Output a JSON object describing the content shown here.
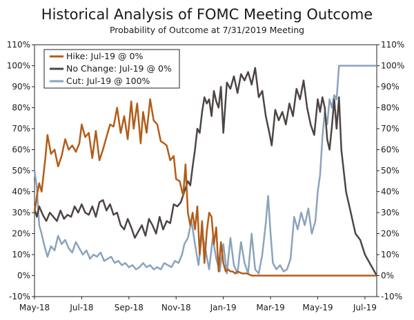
{
  "chart_data": {
    "type": "line",
    "title": "Historical Analysis of FOMC Meeting Outcome",
    "subtitle": "Probability of Outcome at 7/31/2019 Meeting",
    "y_tick_labels": [
      "-10%",
      "0%",
      "10%",
      "20%",
      "30%",
      "40%",
      "50%",
      "60%",
      "70%",
      "80%",
      "90%",
      "100%",
      "110%"
    ],
    "y_tick_values": [
      -10,
      0,
      10,
      20,
      30,
      40,
      50,
      60,
      70,
      80,
      90,
      100,
      110
    ],
    "ylim": [
      -10,
      110
    ],
    "xlim": [
      0,
      14.5
    ],
    "x_tick_labels": [
      "May-18",
      "Jul-18",
      "Sep-18",
      "Nov-18",
      "Jan-19",
      "Mar-19",
      "May-19",
      "Jul-19"
    ],
    "x_tick_values": [
      0,
      2,
      4,
      6,
      8,
      10,
      12,
      14
    ],
    "legend": {
      "position": "top-left"
    },
    "series": [
      {
        "name": "Hike: Jul-19 @ 0%",
        "color": "#b35c17",
        "x": [
          0,
          0.1,
          0.2,
          0.3,
          0.45,
          0.55,
          0.7,
          0.85,
          1.0,
          1.15,
          1.3,
          1.45,
          1.6,
          1.75,
          1.9,
          2.0,
          2.15,
          2.3,
          2.45,
          2.6,
          2.75,
          2.9,
          3.05,
          3.2,
          3.35,
          3.5,
          3.65,
          3.8,
          3.95,
          4.1,
          4.2,
          4.35,
          4.5,
          4.6,
          4.75,
          4.9,
          5.05,
          5.2,
          5.35,
          5.5,
          5.6,
          5.75,
          5.9,
          6.0,
          6.15,
          6.3,
          6.4,
          6.5,
          6.6,
          6.7,
          6.8,
          6.9,
          7.0,
          7.1,
          7.2,
          7.3,
          7.4,
          7.5,
          7.6,
          7.7,
          7.8,
          7.9,
          8.0,
          8.1,
          8.2,
          8.3,
          8.4,
          8.5,
          8.6,
          8.8,
          9.0,
          9.2,
          9.4,
          9.6,
          9.8,
          10.0,
          10.5,
          11.0,
          11.5,
          12.0,
          12.5,
          13.0,
          13.5,
          14.0,
          14.5
        ],
        "values": [
          30,
          38,
          44,
          40,
          55,
          67,
          58,
          60,
          52,
          57,
          65,
          60,
          62,
          59,
          63,
          72,
          66,
          68,
          56,
          69,
          55,
          60,
          66,
          72,
          71,
          80,
          68,
          76,
          65,
          83,
          70,
          82,
          63,
          78,
          68,
          84,
          74,
          72,
          64,
          63,
          62,
          55,
          57,
          46,
          45,
          38,
          53,
          30,
          24,
          30,
          22,
          33,
          10,
          26,
          6,
          21,
          30,
          28,
          15,
          23,
          2,
          16,
          6,
          2,
          3,
          2,
          2,
          1,
          2,
          1,
          1,
          0,
          0,
          0,
          0,
          0,
          0,
          0,
          0,
          0,
          0,
          0,
          0,
          0,
          0
        ]
      },
      {
        "name": "No Change: Jul-19 @ 0%",
        "color": "#4d4444",
        "x": [
          0,
          0.1,
          0.2,
          0.35,
          0.5,
          0.65,
          0.8,
          0.95,
          1.1,
          1.25,
          1.4,
          1.55,
          1.7,
          1.85,
          2.0,
          2.15,
          2.3,
          2.45,
          2.6,
          2.75,
          2.9,
          3.05,
          3.2,
          3.35,
          3.5,
          3.65,
          3.8,
          3.95,
          4.1,
          4.25,
          4.4,
          4.55,
          4.7,
          4.85,
          5.0,
          5.15,
          5.3,
          5.45,
          5.6,
          5.75,
          5.9,
          6.05,
          6.2,
          6.35,
          6.5,
          6.6,
          6.7,
          6.8,
          6.9,
          7.0,
          7.1,
          7.2,
          7.3,
          7.4,
          7.5,
          7.6,
          7.7,
          7.8,
          7.9,
          8.0,
          8.15,
          8.3,
          8.45,
          8.6,
          8.75,
          8.9,
          9.05,
          9.2,
          9.35,
          9.5,
          9.65,
          9.8,
          9.95,
          10.05,
          10.2,
          10.35,
          10.5,
          10.65,
          10.8,
          10.95,
          11.1,
          11.25,
          11.4,
          11.55,
          11.7,
          11.85,
          12.0,
          12.1,
          12.2,
          12.3,
          12.4,
          12.5,
          12.6,
          12.7,
          12.8,
          12.9,
          13.0,
          13.2,
          13.4,
          13.6,
          13.8,
          14.0,
          14.5
        ],
        "values": [
          32,
          28,
          33,
          29,
          26,
          30,
          28,
          26,
          31,
          27,
          29,
          28,
          33,
          30,
          34,
          30,
          29,
          33,
          28,
          35,
          36,
          31,
          34,
          29,
          30,
          24,
          22,
          27,
          23,
          18,
          21,
          24,
          19,
          27,
          24,
          20,
          28,
          22,
          26,
          25,
          34,
          33,
          35,
          40,
          45,
          43,
          52,
          60,
          70,
          68,
          78,
          85,
          82,
          84,
          76,
          88,
          83,
          80,
          90,
          68,
          92,
          89,
          95,
          87,
          96,
          93,
          97,
          91,
          99,
          85,
          88,
          76,
          68,
          62,
          79,
          74,
          78,
          72,
          82,
          76,
          89,
          84,
          93,
          80,
          72,
          67,
          84,
          78,
          85,
          80,
          65,
          60,
          71,
          84,
          70,
          85,
          60,
          40,
          30,
          20,
          17,
          10,
          0
        ]
      },
      {
        "name": "Cut: Jul-19 @ 100%",
        "color": "#8aa3bd",
        "x": [
          0,
          0.1,
          0.2,
          0.3,
          0.4,
          0.55,
          0.7,
          0.85,
          1.0,
          1.15,
          1.3,
          1.45,
          1.6,
          1.75,
          1.9,
          2.05,
          2.2,
          2.35,
          2.5,
          2.65,
          2.8,
          2.95,
          3.1,
          3.25,
          3.4,
          3.55,
          3.7,
          3.85,
          4.0,
          4.15,
          4.3,
          4.45,
          4.6,
          4.75,
          4.9,
          5.05,
          5.2,
          5.35,
          5.5,
          5.65,
          5.8,
          5.95,
          6.1,
          6.25,
          6.35,
          6.5,
          6.65,
          6.8,
          6.95,
          7.1,
          7.25,
          7.4,
          7.55,
          7.7,
          7.85,
          8.0,
          8.15,
          8.3,
          8.45,
          8.6,
          8.75,
          8.9,
          9.05,
          9.2,
          9.35,
          9.5,
          9.65,
          9.8,
          9.9,
          10.0,
          10.1,
          10.25,
          10.4,
          10.55,
          10.7,
          10.85,
          11.0,
          11.15,
          11.3,
          11.45,
          11.6,
          11.75,
          11.9,
          12.0,
          12.1,
          12.2,
          12.3,
          12.4,
          12.5,
          12.6,
          12.7,
          12.8,
          12.9,
          13.0,
          13.1,
          13.2,
          13.3,
          13.4,
          13.5,
          13.6,
          13.8,
          14.0,
          14.5
        ],
        "values": [
          50,
          42,
          24,
          20,
          15,
          9,
          14,
          12,
          19,
          15,
          17,
          13,
          11,
          16,
          13,
          10,
          12,
          8,
          10,
          9,
          11,
          7,
          8,
          9,
          6,
          7,
          5,
          6,
          4,
          5,
          3,
          4,
          6,
          4,
          5,
          3,
          4,
          3,
          6,
          5,
          4,
          7,
          6,
          10,
          15,
          18,
          26,
          15,
          5,
          20,
          12,
          3,
          18,
          8,
          2,
          15,
          1,
          18,
          5,
          1,
          16,
          6,
          1,
          20,
          3,
          1,
          10,
          25,
          38,
          20,
          6,
          3,
          5,
          2,
          3,
          8,
          28,
          22,
          30,
          24,
          32,
          20,
          26,
          40,
          48,
          66,
          78,
          72,
          84,
          80,
          86,
          84,
          100,
          100,
          100,
          100,
          100,
          100,
          100,
          100,
          100,
          100,
          100
        ]
      }
    ]
  }
}
